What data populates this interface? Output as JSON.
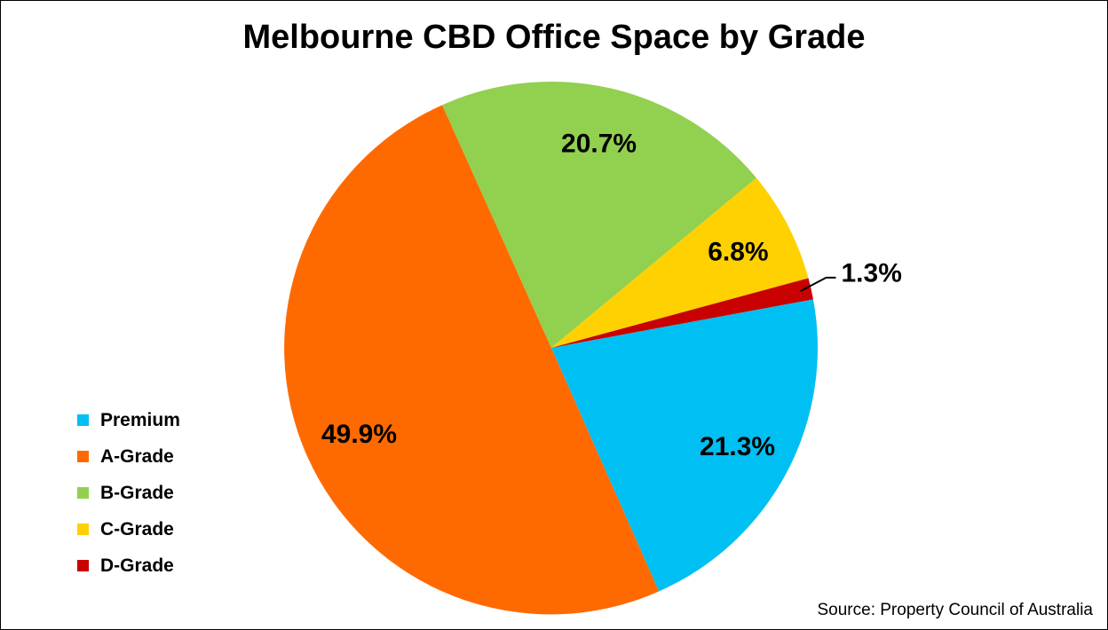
{
  "title": "Melbourne CBD Office Space by Grade",
  "source_note": "Source: Property Council of Australia",
  "chart_data": {
    "type": "pie",
    "title": "Melbourne CBD Office Space by Grade",
    "categories": [
      "Premium",
      "A-Grade",
      "B-Grade",
      "C-Grade",
      "D-Grade"
    ],
    "values": [
      21.3,
      49.9,
      20.7,
      6.8,
      1.3
    ],
    "slice_labels": [
      "21.3%",
      "49.9%",
      "20.7%",
      "6.8%",
      "1.3%"
    ],
    "colors": [
      "#00BFF3",
      "#FF6A00",
      "#92D050",
      "#FFD100",
      "#C80000"
    ],
    "label_outside": [
      false,
      false,
      false,
      false,
      true
    ],
    "label_text_color": "#000000",
    "legend_position": "left",
    "direction": "clockwise",
    "start_angle_clockwise_from_top_deg": 79.5,
    "annotation": "Source: Property Council of Australia"
  }
}
